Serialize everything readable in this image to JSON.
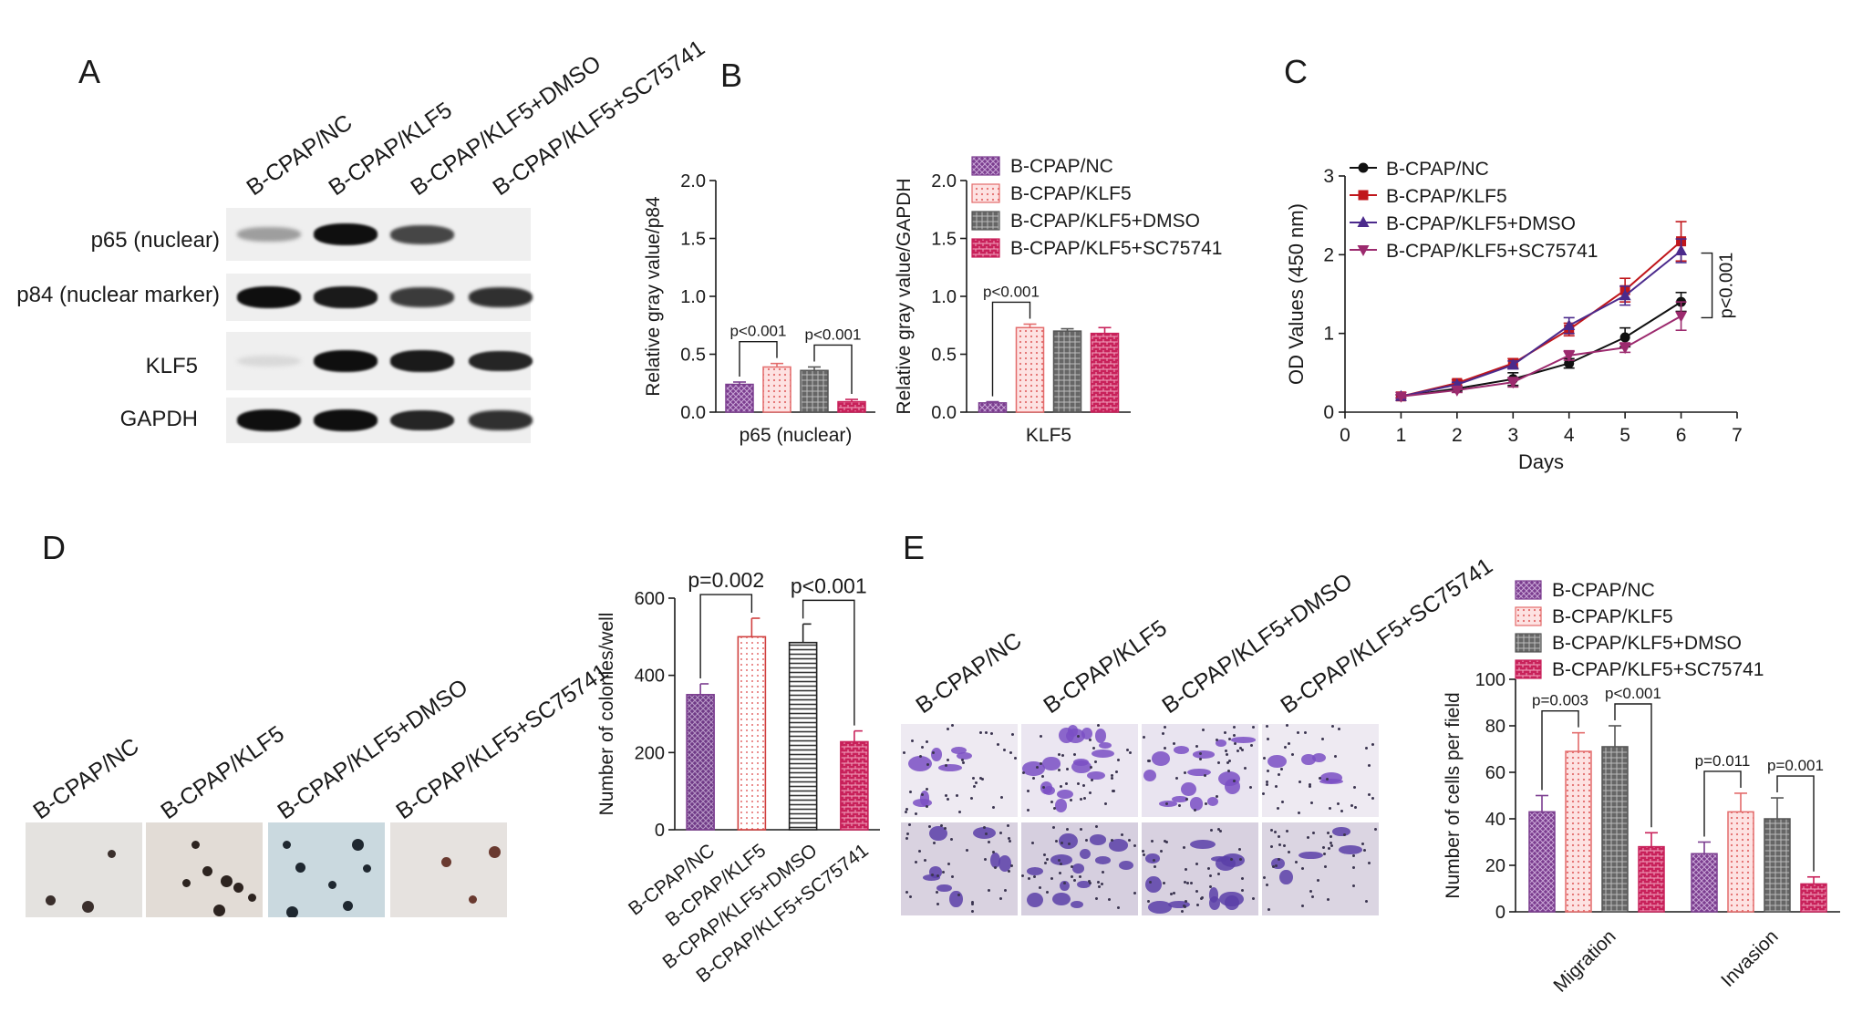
{
  "panels": {
    "A": {
      "letter": "A",
      "lanes": [
        "B-CPAP/NC",
        "B-CPAP/KLF5",
        "B-CPAP/KLF5+DMSO",
        "B-CPAP/KLF5+SC75741"
      ],
      "rows": [
        {
          "label": "p65 (nuclear)",
          "intensity": [
            0.35,
            1.0,
            0.75,
            0.0
          ]
        },
        {
          "label": "p84 (nuclear marker)",
          "intensity": [
            1.0,
            0.95,
            0.8,
            0.85
          ]
        },
        {
          "label": "KLF5",
          "intensity": [
            0.08,
            1.0,
            0.95,
            0.9
          ]
        },
        {
          "label": "GAPDH",
          "intensity": [
            1.0,
            1.0,
            0.9,
            0.85
          ]
        }
      ]
    },
    "B": {
      "letter": "B"
    },
    "C": {
      "letter": "C"
    },
    "D": {
      "letter": "D",
      "lanes": [
        "B-CPAP/NC",
        "B-CPAP/KLF5",
        "B-CPAP/KLF5+DMSO",
        "B-CPAP/KLF5+SC75741"
      ]
    },
    "E": {
      "letter": "E",
      "lanes": [
        "B-CPAP/NC",
        "B-CPAP/KLF5",
        "B-CPAP/KLF5+DMSO",
        "B-CPAP/KLF5+SC75741"
      ]
    }
  },
  "colors": {
    "nc": "#7b3d8f",
    "klf5": "#e36b6b",
    "dmso": "#555555",
    "sc": "#c8215a",
    "line_nc": "#111111",
    "line_klf5": "#c0171c",
    "line_dmso": "#4b2a8c",
    "line_sc": "#9c2a6e"
  },
  "chart_data": [
    {
      "id": "B1",
      "type": "bar",
      "categories": [
        "p65 (nuclear)"
      ],
      "series": [
        {
          "name": "B-CPAP/NC",
          "values": [
            0.24
          ],
          "error": [
            0.02
          ]
        },
        {
          "name": "B-CPAP/KLF5",
          "values": [
            0.39
          ],
          "error": [
            0.03
          ]
        },
        {
          "name": "B-CPAP/KLF5+DMSO",
          "values": [
            0.36
          ],
          "error": [
            0.03
          ]
        },
        {
          "name": "B-CPAP/KLF5+SC75741",
          "values": [
            0.09
          ],
          "error": [
            0.02
          ]
        }
      ],
      "ylabel": "Relative gray value/p84",
      "ylim": [
        0,
        2.0
      ],
      "yticks": [
        "0.0",
        "0.5",
        "1.0",
        "1.5",
        "2.0"
      ],
      "annotations": [
        {
          "text": "p<0.001",
          "from": 0,
          "to": 1
        },
        {
          "text": "p<0.001",
          "from": 2,
          "to": 3
        }
      ]
    },
    {
      "id": "B2",
      "type": "bar",
      "categories": [
        "KLF5"
      ],
      "series": [
        {
          "name": "B-CPAP/NC",
          "values": [
            0.08
          ],
          "error": [
            0.01
          ]
        },
        {
          "name": "B-CPAP/KLF5",
          "values": [
            0.73
          ],
          "error": [
            0.03
          ]
        },
        {
          "name": "B-CPAP/KLF5+DMSO",
          "values": [
            0.7
          ],
          "error": [
            0.02
          ]
        },
        {
          "name": "B-CPAP/KLF5+SC75741",
          "values": [
            0.68
          ],
          "error": [
            0.05
          ]
        }
      ],
      "ylabel": "Relative gray value/GAPDH",
      "ylim": [
        0,
        2.0
      ],
      "yticks": [
        "0.0",
        "0.5",
        "1.0",
        "1.5",
        "2.0"
      ],
      "legend": "top-right",
      "annotations": [
        {
          "text": "p<0.001",
          "from": 0,
          "to": 1
        }
      ]
    },
    {
      "id": "C",
      "type": "line",
      "x": [
        1,
        2,
        3,
        4,
        5,
        6
      ],
      "series": [
        {
          "name": "B-CPAP/NC",
          "values": [
            0.2,
            0.3,
            0.42,
            0.62,
            0.95,
            1.4
          ],
          "error": [
            0.02,
            0.03,
            0.08,
            0.06,
            0.12,
            0.12
          ]
        },
        {
          "name": "B-CPAP/KLF5",
          "values": [
            0.2,
            0.37,
            0.62,
            1.05,
            1.55,
            2.17
          ],
          "error": [
            0.02,
            0.04,
            0.06,
            0.08,
            0.15,
            0.25
          ]
        },
        {
          "name": "B-CPAP/KLF5+DMSO",
          "values": [
            0.2,
            0.35,
            0.6,
            1.1,
            1.48,
            2.05
          ],
          "error": [
            0.02,
            0.03,
            0.05,
            0.1,
            0.12,
            0.15
          ]
        },
        {
          "name": "B-CPAP/KLF5+SC75741",
          "values": [
            0.2,
            0.28,
            0.38,
            0.72,
            0.82,
            1.22
          ],
          "error": [
            0.02,
            0.03,
            0.06,
            0.06,
            0.06,
            0.18
          ]
        }
      ],
      "xlabel": "Days",
      "ylabel": "OD Values (450 nm)",
      "xlim": [
        0,
        7
      ],
      "ylim": [
        0,
        3
      ],
      "xticks": [
        "0",
        "1",
        "2",
        "3",
        "4",
        "5",
        "6",
        "7"
      ],
      "yticks": [
        "0",
        "1",
        "2",
        "3"
      ],
      "legend": "top-left",
      "annotations": [
        {
          "text": "p<0.001"
        }
      ]
    },
    {
      "id": "D",
      "type": "bar",
      "categories": [
        "B-CPAP/NC",
        "B-CPAP/KLF5",
        "B-CPAP/KLF5+DMSO",
        "B-CPAP/KLF5+SC75741"
      ],
      "values": [
        350,
        500,
        485,
        228
      ],
      "error": [
        28,
        48,
        48,
        28
      ],
      "ylabel": "Number of colonies/well",
      "ylim": [
        0,
        600
      ],
      "yticks": [
        "0",
        "200",
        "400",
        "600"
      ],
      "annotations": [
        {
          "text": "p=0.002",
          "from": 0,
          "to": 1
        },
        {
          "text": "p<0.001",
          "from": 2,
          "to": 3
        }
      ]
    },
    {
      "id": "E",
      "type": "bar",
      "categories": [
        "Migration",
        "Invasion"
      ],
      "series": [
        {
          "name": "B-CPAP/NC",
          "values": [
            43,
            25
          ],
          "error": [
            7,
            5
          ]
        },
        {
          "name": "B-CPAP/KLF5",
          "values": [
            69,
            43
          ],
          "error": [
            8,
            8
          ]
        },
        {
          "name": "B-CPAP/KLF5+DMSO",
          "values": [
            71,
            40
          ],
          "error": [
            9,
            9
          ]
        },
        {
          "name": "B-CPAP/KLF5+SC75741",
          "values": [
            28,
            12
          ],
          "error": [
            6,
            3
          ]
        }
      ],
      "ylabel": "Number of cells per field",
      "ylim": [
        0,
        100
      ],
      "yticks": [
        "0",
        "20",
        "40",
        "60",
        "80",
        "100"
      ],
      "legend": "top",
      "annotations": [
        {
          "text": "p=0.003",
          "group": 0,
          "from": 0,
          "to": 1
        },
        {
          "text": "p<0.001",
          "group": 0,
          "from": 2,
          "to": 3
        },
        {
          "text": "p=0.011",
          "group": 1,
          "from": 0,
          "to": 1
        },
        {
          "text": "p=0.001",
          "group": 1,
          "from": 2,
          "to": 3
        }
      ]
    }
  ]
}
